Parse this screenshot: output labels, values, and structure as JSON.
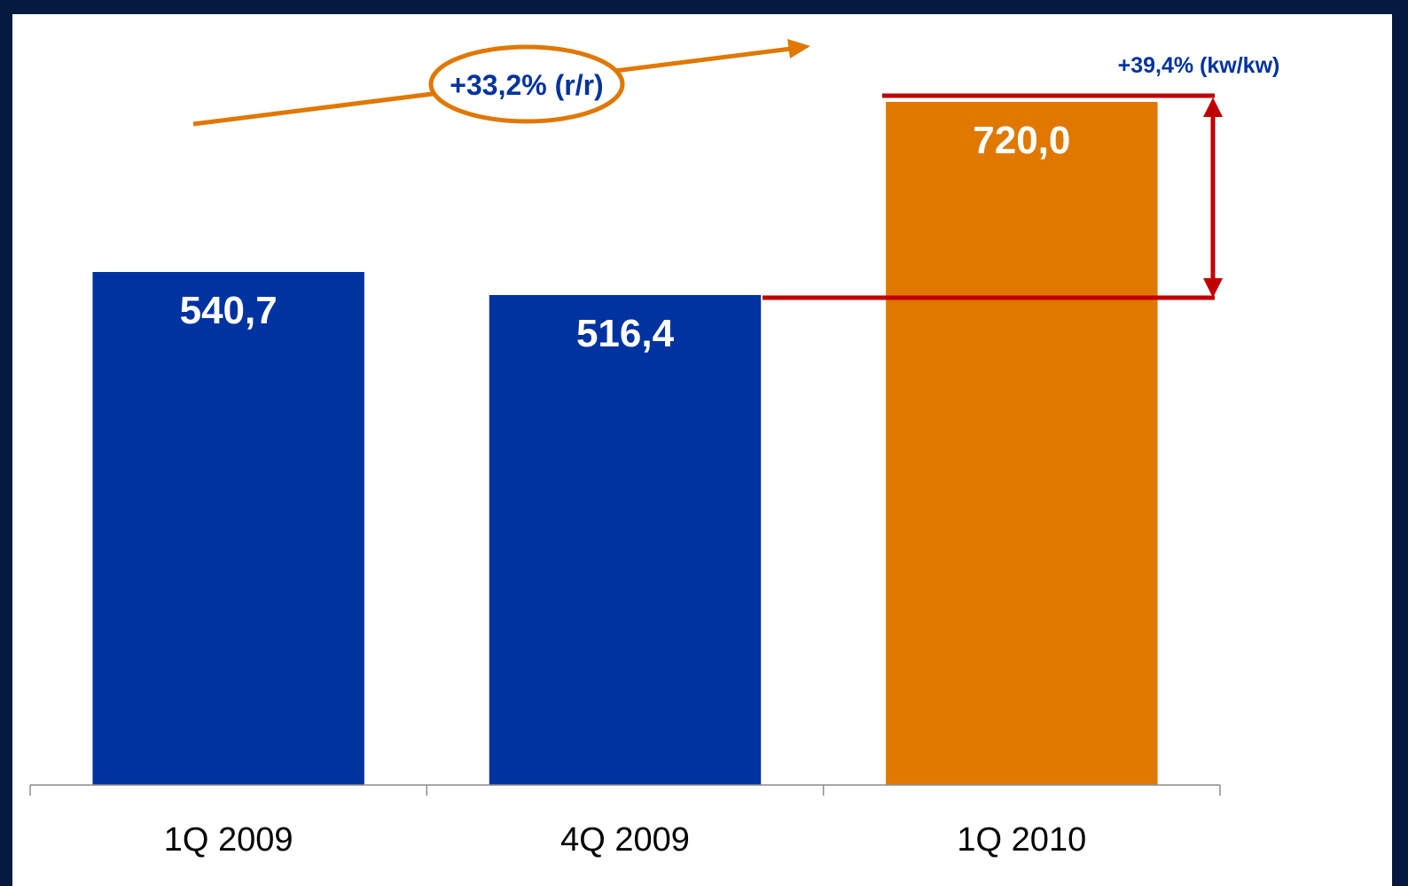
{
  "chart_data": {
    "type": "bar",
    "categories": [
      "1Q 2009",
      "4Q 2009",
      "1Q 2010"
    ],
    "values": [
      540.7,
      516.4,
      720.0
    ],
    "value_labels": [
      "540,7",
      "516,4",
      "720,0"
    ],
    "colors": [
      "#0033a0",
      "#0033a0",
      "#e07800"
    ],
    "ylim": [
      0,
      740
    ],
    "grid": false,
    "annotations": {
      "yoy": {
        "label": "+33,2% (r/r)",
        "from": "1Q 2009",
        "to": "1Q 2010",
        "color": "#e07800",
        "text_color": "#0033a0"
      },
      "qoq": {
        "label": "+39,4% (kw/kw)",
        "from": "4Q 2009",
        "to": "1Q 2010",
        "color": "#c00000",
        "text_color": "#0033a0"
      }
    }
  },
  "colors": {
    "frame": "#061a40",
    "axis": "#8c8c8c",
    "value_text": "#ffffff",
    "tick_text": "#000000"
  }
}
